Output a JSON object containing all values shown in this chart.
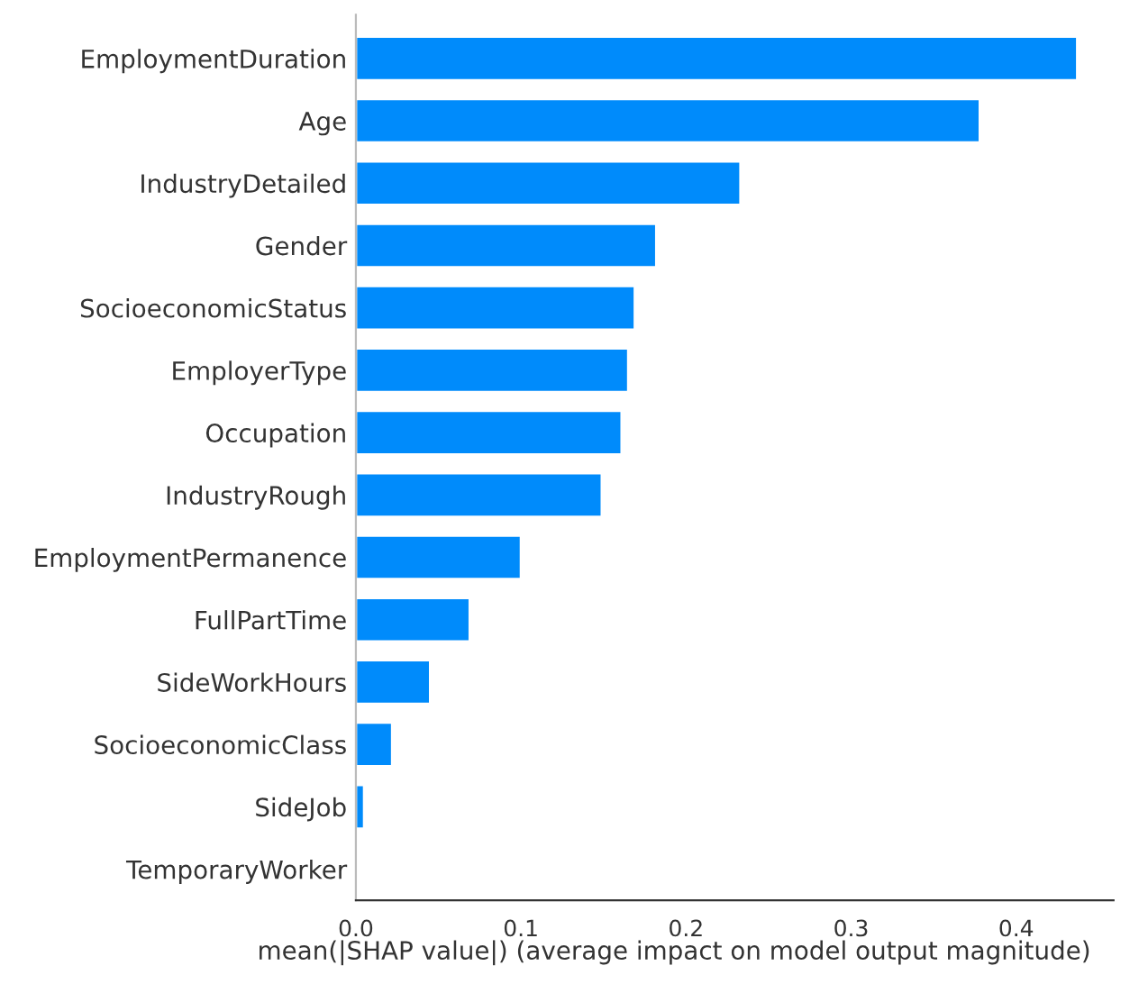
{
  "chart_data": {
    "type": "bar",
    "orientation": "horizontal",
    "categories": [
      "EmploymentDuration",
      "Age",
      "IndustryDetailed",
      "Gender",
      "SocioeconomicStatus",
      "EmployerType",
      "Occupation",
      "IndustryRough",
      "EmploymentPermanence",
      "FullPartTime",
      "SideWorkHours",
      "SocioeconomicClass",
      "SideJob",
      "TemporaryWorker"
    ],
    "values": [
      0.437,
      0.378,
      0.233,
      0.182,
      0.169,
      0.165,
      0.161,
      0.149,
      0.1,
      0.069,
      0.045,
      0.022,
      0.005,
      null
    ],
    "color": "#008bfb",
    "xlim": [
      0,
      0.459
    ],
    "xticks": [
      {
        "value": 0,
        "label": "0.0"
      },
      0.1,
      0.2,
      0.3,
      0.4
    ],
    "xlabel": "mean(|SHAP value|) (average impact on model output magnitude)",
    "grid": false,
    "legend": false
  }
}
